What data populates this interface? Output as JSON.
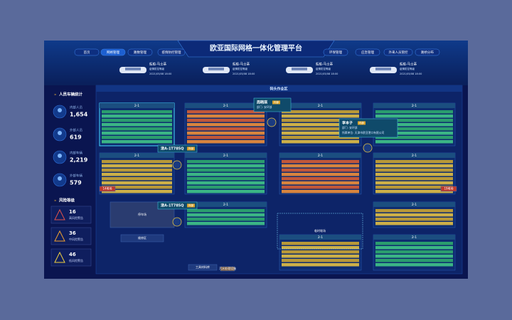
{
  "header": {
    "title": "欧亚国际网格一体化管理平台",
    "nav_left": [
      "首页",
      "网格管理",
      "路数管理",
      "疫情防控管理"
    ],
    "nav_right": [
      "环保管理",
      "应急管理",
      "外来人员管控",
      "路桥分布"
    ]
  },
  "ships": [
    {
      "name": "船舶-马士基",
      "info": "疫情防控等级",
      "time": "2021/05/08 18:00"
    },
    {
      "name": "船舶-马士基",
      "info": "疫情防控等级",
      "time": "2021/05/08 18:00"
    },
    {
      "name": "船舶-马士基",
      "info": "疫情防控等级",
      "time": "2021/05/08 18:00"
    },
    {
      "name": "船舶-马士基",
      "info": "疫情防控等级",
      "time": "2021/05/08 18:00"
    }
  ],
  "stats": {
    "title": "人员车辆统计",
    "items": [
      {
        "label": "内部人员",
        "value": "1,654"
      },
      {
        "label": "外部人员",
        "value": "619"
      },
      {
        "label": "内部车辆",
        "value": "2,219"
      },
      {
        "label": "外部车辆",
        "value": "579"
      }
    ]
  },
  "risk": {
    "title": "风险等级",
    "items": [
      {
        "value": "16",
        "label": "高风险警告"
      },
      {
        "value": "36",
        "label": "中风险警告"
      },
      {
        "value": "46",
        "label": "低风险警告"
      }
    ]
  },
  "map": {
    "zone_title": "码头作业区",
    "blocks": [
      {
        "label": "2-1",
        "color": "green"
      },
      {
        "label": "2-1",
        "color": "orange"
      },
      {
        "label": "2-1",
        "color": "yellow"
      },
      {
        "label": "2-1",
        "color": "green"
      },
      {
        "label": "2-1",
        "color": "yellow"
      },
      {
        "label": "2-1",
        "color": "green"
      },
      {
        "label": "2-1",
        "color": "orange"
      },
      {
        "label": "2-1",
        "color": "yellow"
      },
      {
        "label": "2-1",
        "color": "green"
      },
      {
        "label": "2-1",
        "color": "yellow"
      },
      {
        "label": "2-1",
        "color": "yellow"
      },
      {
        "label": "2-1",
        "color": "green"
      }
    ],
    "schemes": {
      "green": [
        "#2a9d6e",
        "#3bb585"
      ],
      "orange": [
        "#c1573a",
        "#d8843e"
      ],
      "yellow": [
        "#b89838",
        "#cdb048"
      ]
    },
    "popups": [
      {
        "name": "周韩琪",
        "tag": "内部",
        "lines": [
          "部门: 安环部"
        ]
      },
      {
        "name": "李本子",
        "tag": "内部",
        "lines": [
          "部门: 安环部",
          "所属单位: 天津市欧亚港口有限公司"
        ]
      }
    ],
    "plates": [
      {
        "plate": "津A-1T785Q",
        "tag": "外部"
      },
      {
        "plate": "津A-1T785Q",
        "tag": "外部"
      }
    ],
    "labels": [
      "14堆场",
      "19堆场",
      "临时堆场",
      "停车场",
      "维修区",
      "工具材料库",
      "污水处理设施"
    ]
  }
}
